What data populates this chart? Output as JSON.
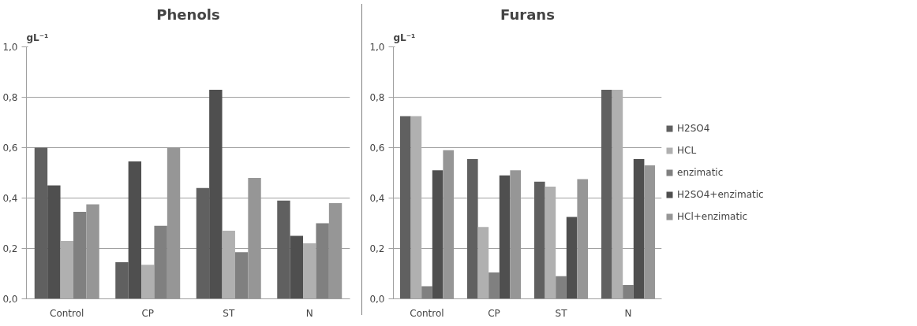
{
  "chart_data": [
    {
      "type": "bar",
      "title": "Phenols",
      "ylabel": "gL⁻¹",
      "categories": [
        "Control",
        "CP",
        "ST",
        "N"
      ],
      "series": [
        {
          "color": "#606060",
          "values": [
            0.6,
            0.145,
            0.44,
            0.39
          ]
        },
        {
          "color": "#4f4f4f",
          "values": [
            0.45,
            0.545,
            0.83,
            0.25
          ]
        },
        {
          "color": "#b0b0b0",
          "values": [
            0.23,
            0.135,
            0.27,
            0.22
          ]
        },
        {
          "color": "#808080",
          "values": [
            0.345,
            0.29,
            0.185,
            0.3
          ]
        },
        {
          "color": "#969696",
          "values": [
            0.375,
            0.6,
            0.48,
            0.38
          ]
        }
      ],
      "ylim": [
        0,
        1
      ],
      "yticks": [
        {
          "value": 0,
          "label": "0,0"
        },
        {
          "value": 0.2,
          "label": "0,2"
        },
        {
          "value": 0.4,
          "label": "0,4"
        },
        {
          "value": 0.6,
          "label": "0,6"
        },
        {
          "value": 0.8,
          "label": "0,8"
        },
        {
          "value": 1,
          "label": "1,0"
        }
      ],
      "grid": "y",
      "legend": false
    },
    {
      "type": "bar",
      "title": "Furans",
      "ylabel": "gL⁻¹",
      "categories": [
        "Control",
        "CP",
        "ST",
        "N"
      ],
      "series": [
        {
          "name": "H2SO4",
          "color": "#606060",
          "values": [
            0.725,
            0.555,
            0.465,
            0.83
          ]
        },
        {
          "name": "HCL",
          "color": "#b0b0b0",
          "values": [
            0.725,
            0.285,
            0.445,
            0.83
          ]
        },
        {
          "name": "enzimatic",
          "color": "#808080",
          "values": [
            0.05,
            0.105,
            0.09,
            0.055
          ]
        },
        {
          "name": "H2SO4+enzimatic",
          "color": "#4f4f4f",
          "values": [
            0.51,
            0.49,
            0.325,
            0.555
          ]
        },
        {
          "name": "HCl+enzimatic",
          "color": "#969696",
          "values": [
            0.59,
            0.51,
            0.475,
            0.53
          ]
        }
      ],
      "ylim": [
        0,
        1
      ],
      "yticks": [
        {
          "value": 0,
          "label": "0,0"
        },
        {
          "value": 0.2,
          "label": "0,2"
        },
        {
          "value": 0.4,
          "label": "0,4"
        },
        {
          "value": 0.6,
          "label": "0,6"
        },
        {
          "value": 0.8,
          "label": "0,8"
        },
        {
          "value": 1,
          "label": "1,0"
        }
      ],
      "grid": "y",
      "legend": "right"
    }
  ]
}
